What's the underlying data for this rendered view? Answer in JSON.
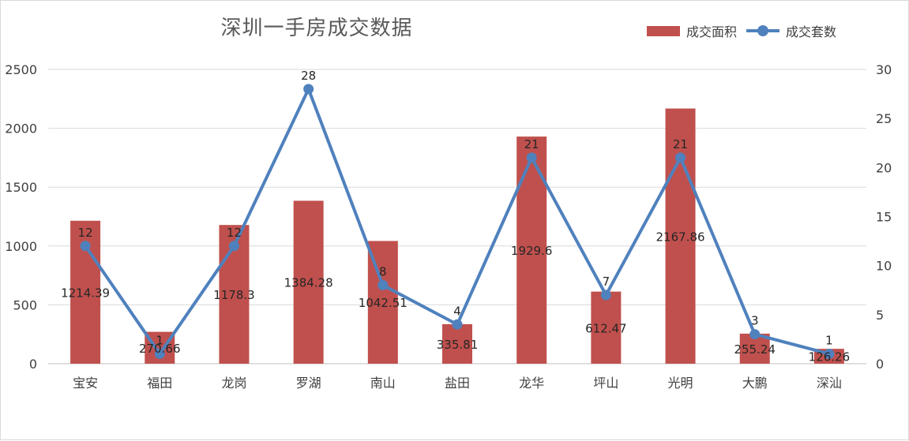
{
  "chart_data": {
    "type": "bar",
    "title": "深圳一手房成交数据",
    "categories": [
      "宝安",
      "福田",
      "龙岗",
      "罗湖",
      "南山",
      "盐田",
      "龙华",
      "坪山",
      "光明",
      "大鹏",
      "深汕"
    ],
    "series": [
      {
        "name": "成交面积",
        "type": "bar",
        "axis": "left",
        "color": "#c0504d",
        "values": [
          1214.39,
          270.66,
          1178.3,
          1384.28,
          1042.51,
          335.81,
          1929.6,
          612.47,
          2167.86,
          255.24,
          126.26
        ]
      },
      {
        "name": "成交套数",
        "type": "line",
        "axis": "right",
        "color": "#4f81bd",
        "values": [
          12,
          1,
          12,
          28,
          8,
          4,
          21,
          7,
          21,
          3,
          1
        ]
      }
    ],
    "y_left": {
      "min": 0,
      "max": 2500,
      "step": 500
    },
    "y_right": {
      "min": 0,
      "max": 30,
      "step": 5
    },
    "grid": true,
    "legend_position": "top-right"
  }
}
